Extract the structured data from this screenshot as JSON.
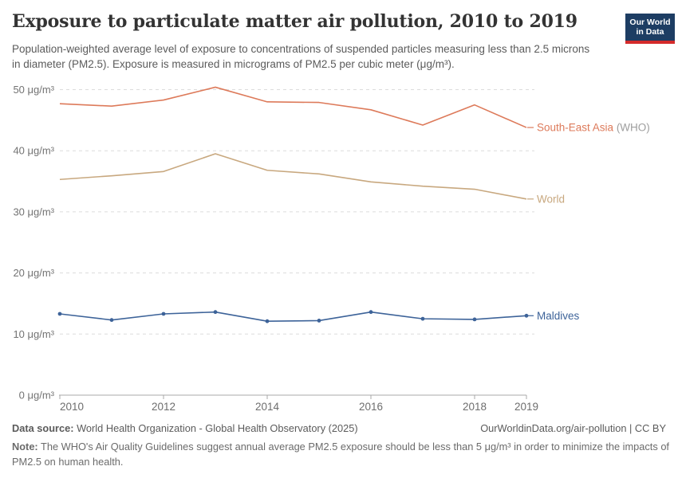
{
  "header": {
    "title": "Exposure to particulate matter air pollution, 2010 to 2019",
    "subtitle": "Population-weighted average level of exposure to concentrations of suspended particles measuring less than 2.5 microns in diameter (PM2.5). Exposure is measured in micrograms of PM2.5 per cubic meter (μg/m³).",
    "logo": {
      "line1": "Our World",
      "line2": "in Data",
      "bg_color": "#1d3d63",
      "bar_color": "#d42b2b"
    }
  },
  "chart_data": {
    "type": "line",
    "title": "Exposure to particulate matter air pollution, 2010 to 2019",
    "x": [
      2010,
      2011,
      2012,
      2013,
      2014,
      2015,
      2016,
      2017,
      2018,
      2019
    ],
    "series": [
      {
        "name": "South-East Asia (WHO)",
        "label": "South-East Asia",
        "label_suffix": " (WHO)",
        "color": "#dd7a5a",
        "suffix_color": "#9e9e9e",
        "markers": false,
        "values": [
          47.7,
          47.3,
          48.3,
          50.4,
          48.0,
          47.9,
          46.7,
          44.2,
          47.5,
          43.8
        ]
      },
      {
        "name": "World",
        "label": "World",
        "label_suffix": "",
        "color": "#c8a87f",
        "suffix_color": "#c8a87f",
        "markers": false,
        "values": [
          35.3,
          35.9,
          36.6,
          39.5,
          36.8,
          36.2,
          34.9,
          34.2,
          33.7,
          32.1
        ]
      },
      {
        "name": "Maldives",
        "label": "Maldives",
        "label_suffix": "",
        "color": "#3d6399",
        "suffix_color": "#3d6399",
        "markers": true,
        "values": [
          13.3,
          12.3,
          13.3,
          13.6,
          12.1,
          12.2,
          13.6,
          12.5,
          12.4,
          13.0
        ]
      }
    ],
    "yticks": [
      0,
      10,
      20,
      30,
      40,
      50
    ],
    "ytick_label_format": "{v} μg/m³",
    "xticks": [
      2010,
      2012,
      2014,
      2016,
      2018,
      2019
    ],
    "ylim": [
      0,
      52
    ],
    "xlabel": "",
    "ylabel": "",
    "grid": "horizontal-dashed",
    "legend_position": "line-end-labels",
    "grid_color": "#dcdcdc",
    "axis_color": "#a8a8a8",
    "tick_label_color": "#737373"
  },
  "footer": {
    "source_prefix": "Data source:",
    "source_text": " World Health Organization - Global Health Observatory (2025)",
    "link": "OurWorldinData.org/air-pollution | CC BY",
    "note_prefix": "Note:",
    "note_text": " The WHO's Air Quality Guidelines suggest annual average PM2.5 exposure should be less than 5 μg/m³ in order to minimize the impacts of PM2.5 on human health."
  }
}
